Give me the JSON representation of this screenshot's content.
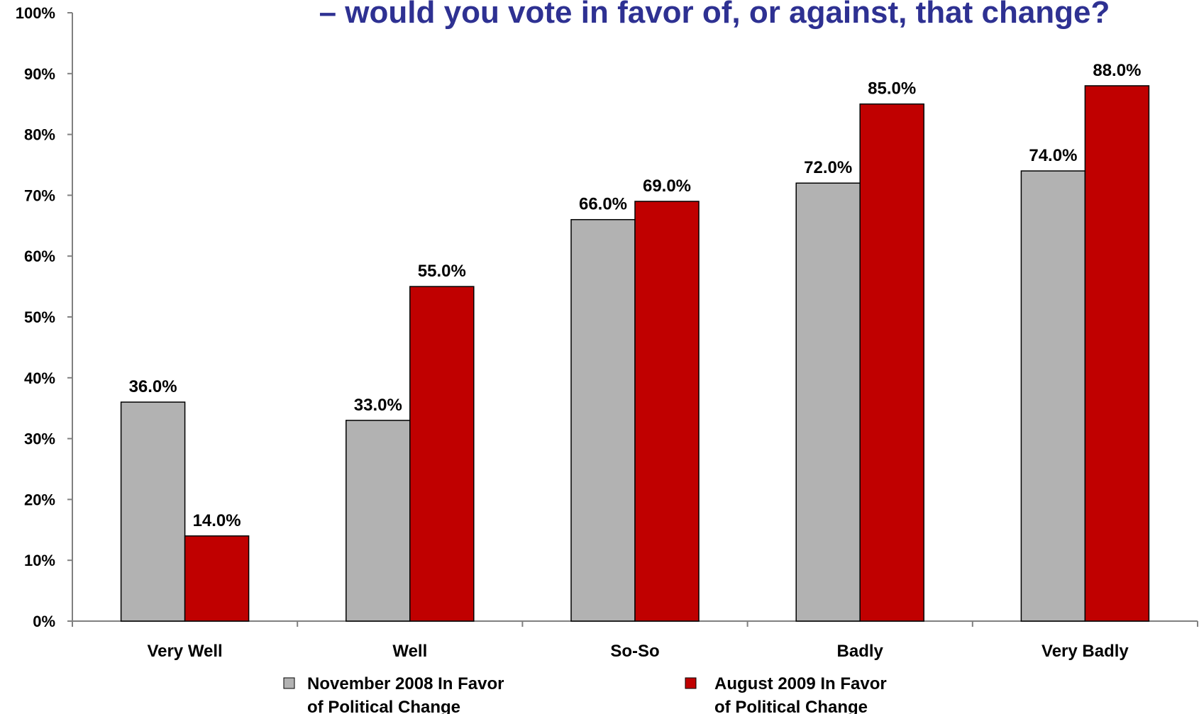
{
  "chart_data": {
    "type": "bar",
    "title": "– would you vote in favor of, or against, that change?",
    "categories": [
      "Very Well",
      "Well",
      "So-So",
      "Badly",
      "Very Badly"
    ],
    "series": [
      {
        "name": "November 2008 In Favor of Political Change",
        "legend_lines": [
          "November 2008 In Favor",
          "of Political Change"
        ],
        "values": [
          36.0,
          33.0,
          66.0,
          72.0,
          74.0
        ],
        "labels": [
          "36.0%",
          "33.0%",
          "66.0%",
          "72.0%",
          "74.0%"
        ],
        "color": "#b2b2b2"
      },
      {
        "name": "August 2009 In Favor of Political Change",
        "legend_lines": [
          "August 2009 In Favor",
          "of Political Change"
        ],
        "values": [
          14.0,
          55.0,
          69.0,
          85.0,
          88.0
        ],
        "labels": [
          "14.0%",
          "55.0%",
          "69.0%",
          "85.0%",
          "88.0%"
        ],
        "color": "#c00000"
      }
    ],
    "ylim": [
      0,
      100
    ],
    "yticks": [
      "0%",
      "10%",
      "20%",
      "30%",
      "40%",
      "50%",
      "60%",
      "70%",
      "80%",
      "90%",
      "100%"
    ],
    "grid": false,
    "legend_position": "bottom",
    "title_color": "#2e3192",
    "axis_color": "#808080"
  }
}
